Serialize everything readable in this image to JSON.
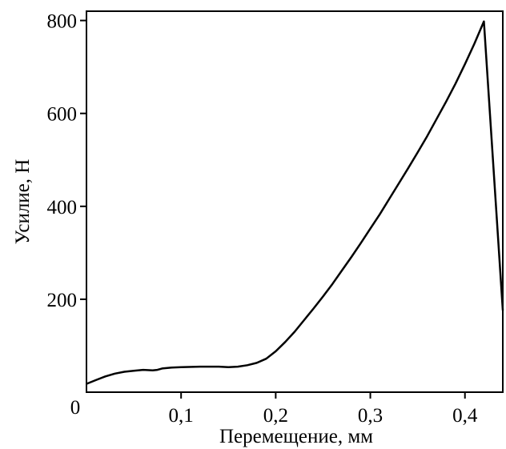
{
  "chart_data": {
    "type": "line",
    "title": "",
    "xlabel": "Перемещение, мм",
    "ylabel": "Усилие, Н",
    "xlim": [
      0,
      0.44
    ],
    "ylim": [
      0,
      820
    ],
    "origin_label": "0",
    "x_ticks": [
      {
        "value": 0.1,
        "label": "0,1"
      },
      {
        "value": 0.2,
        "label": "0,2"
      },
      {
        "value": 0.3,
        "label": "0,3"
      },
      {
        "value": 0.4,
        "label": "0,4"
      }
    ],
    "y_ticks": [
      {
        "value": 200,
        "label": "200"
      },
      {
        "value": 400,
        "label": "400"
      },
      {
        "value": 600,
        "label": "600"
      },
      {
        "value": 800,
        "label": "800"
      }
    ],
    "grid": false,
    "line_color": "#000000",
    "series": [
      {
        "x": [
          0.0,
          0.01,
          0.02,
          0.03,
          0.04,
          0.05,
          0.06,
          0.07,
          0.075,
          0.08,
          0.09,
          0.1,
          0.12,
          0.14,
          0.15,
          0.16,
          0.17,
          0.18,
          0.19,
          0.2,
          0.21,
          0.22,
          0.23,
          0.24,
          0.25,
          0.26,
          0.27,
          0.28,
          0.29,
          0.3,
          0.31,
          0.32,
          0.33,
          0.34,
          0.35,
          0.36,
          0.37,
          0.38,
          0.39,
          0.4,
          0.41,
          0.42,
          0.44
        ],
        "y": [
          18,
          26,
          34,
          40,
          44,
          46,
          48,
          47,
          48,
          51,
          53,
          54,
          55,
          55,
          54,
          55,
          58,
          63,
          72,
          88,
          108,
          130,
          155,
          180,
          206,
          233,
          262,
          291,
          321,
          352,
          383,
          416,
          449,
          482,
          516,
          551,
          588,
          625,
          664,
          706,
          750,
          798,
          176
        ]
      }
    ]
  }
}
